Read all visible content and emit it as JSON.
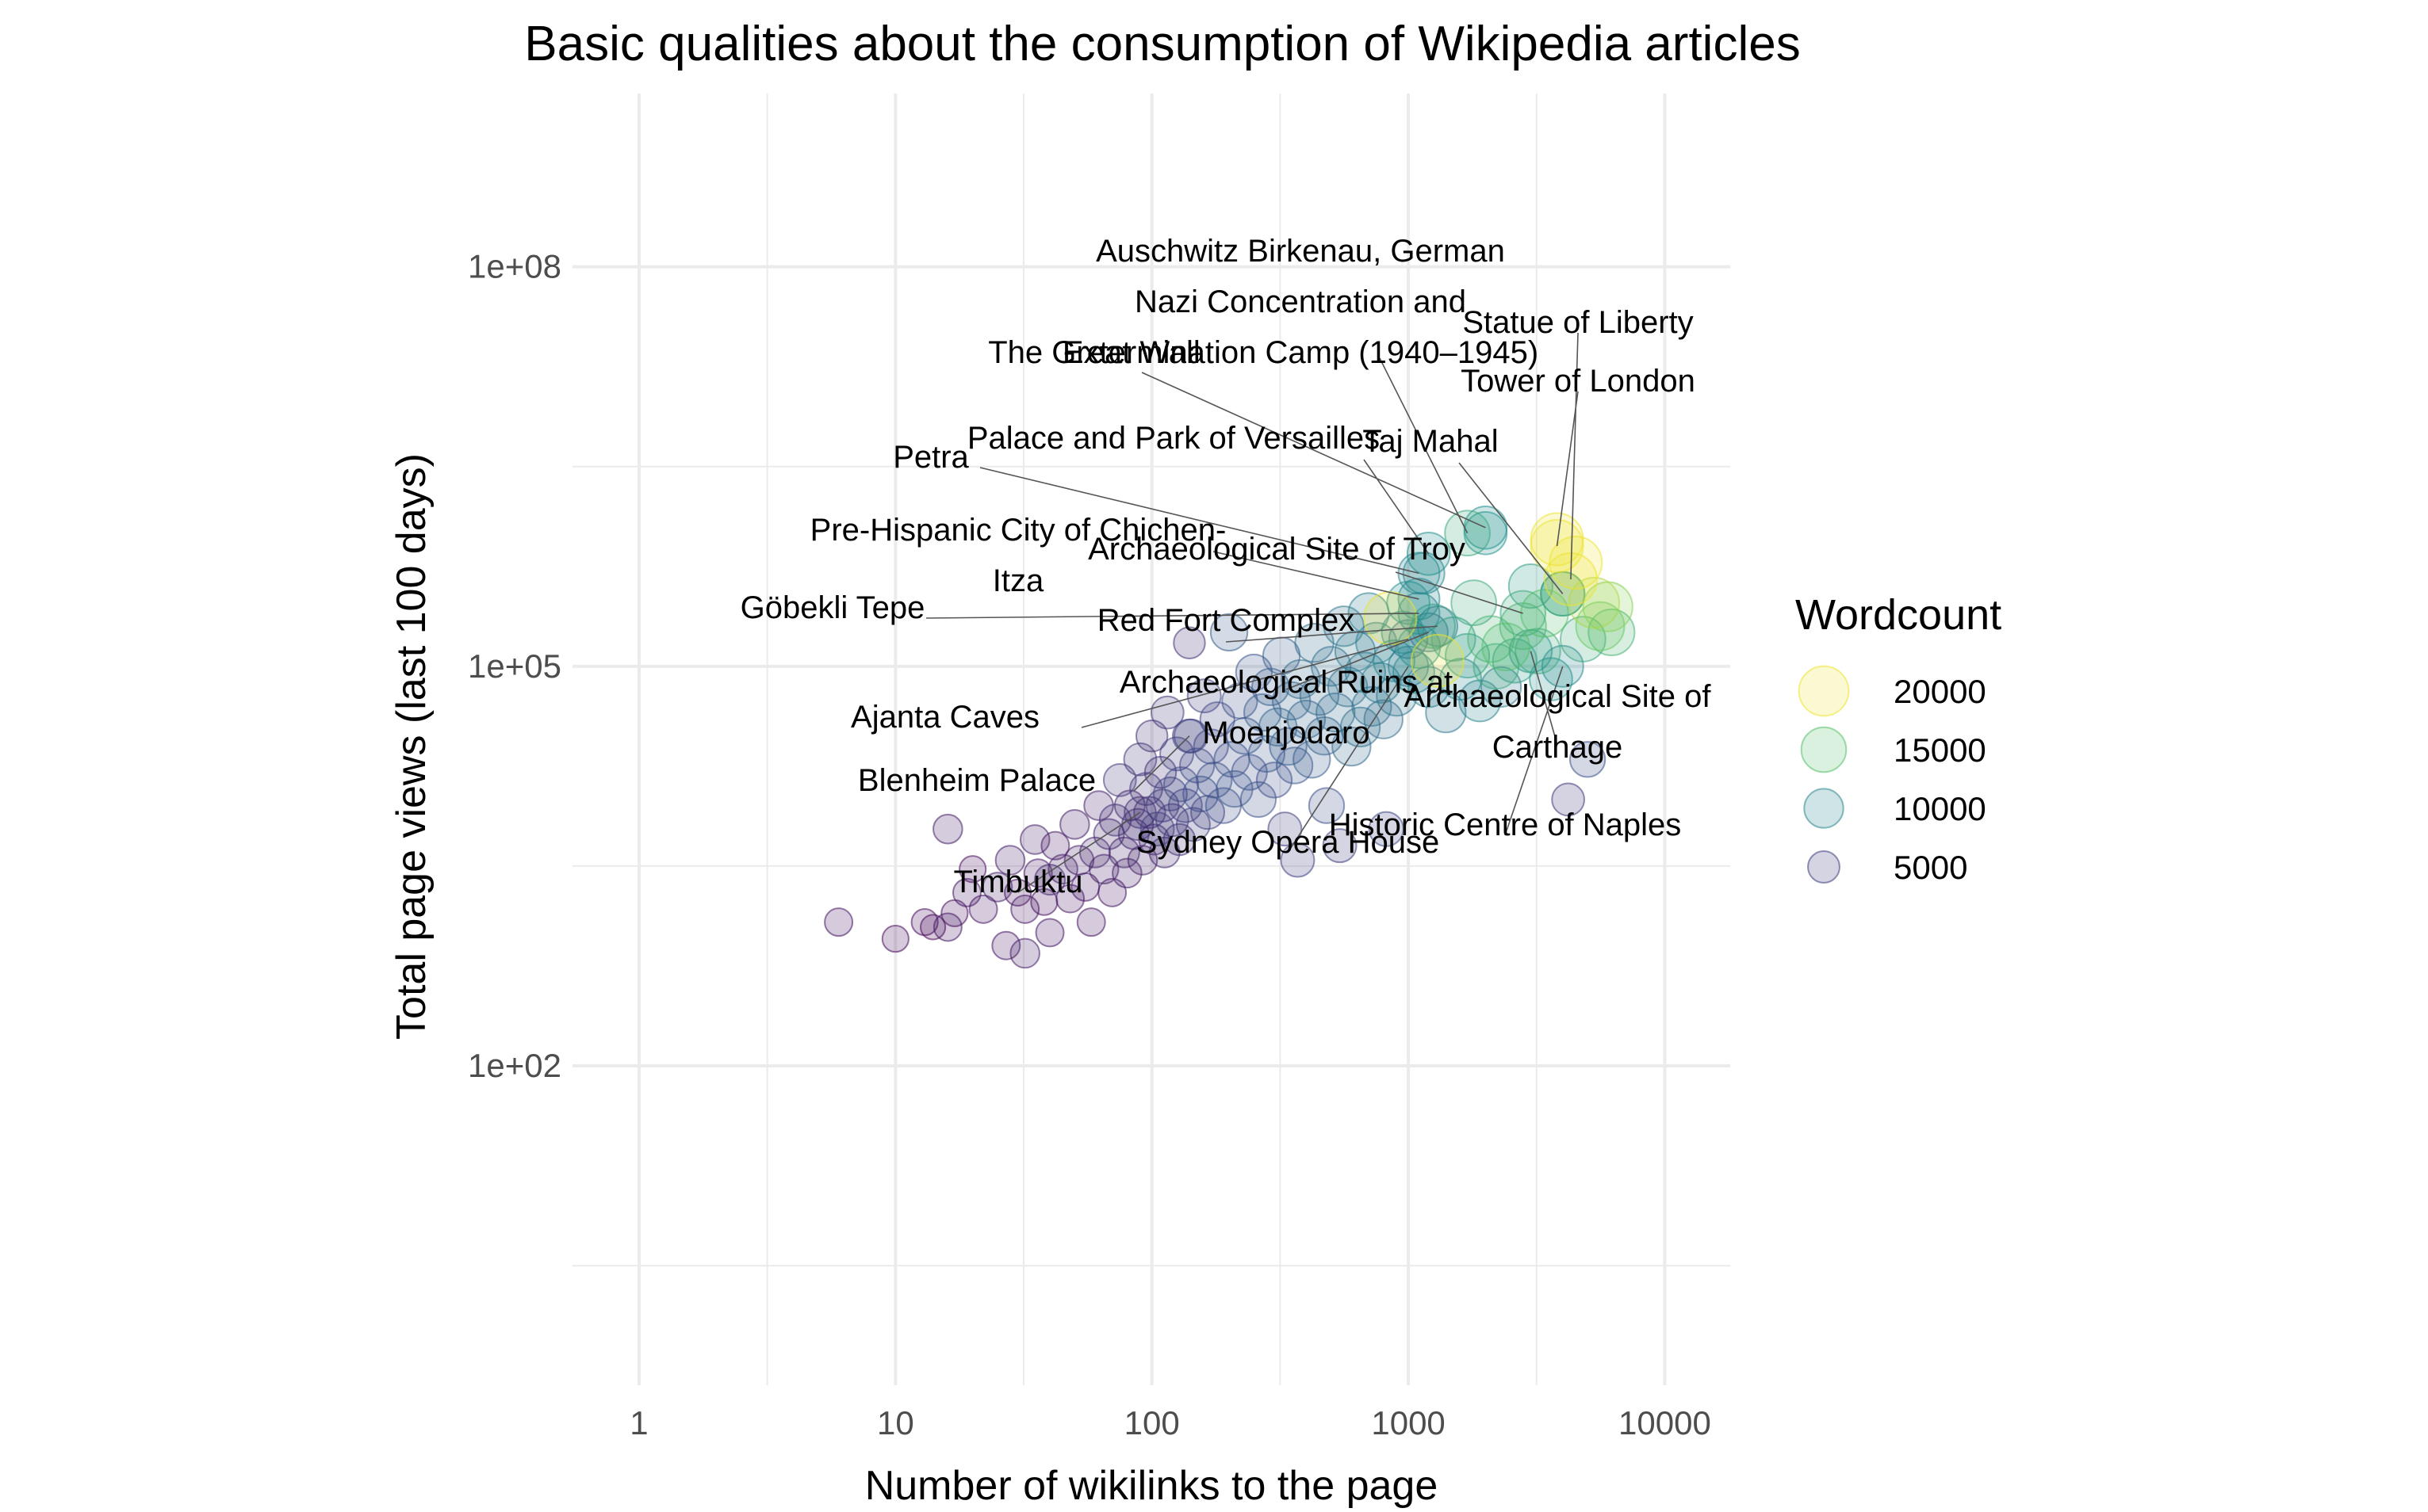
{
  "chart_data": {
    "type": "scatter",
    "title": "Basic qualities about the consumption of Wikipedia articles",
    "xlabel": "Number of wikilinks to the page",
    "ylabel": "Total page views (last 100 days)",
    "x_scale": "log10",
    "y_scale": "log10",
    "xlim": [
      0.55,
      18000
    ],
    "ylim": [
      0.4,
      2000000000
    ],
    "x_ticks": [
      1,
      10,
      100,
      1000,
      10000
    ],
    "x_tick_labels": [
      "1",
      "10",
      "100",
      "1000",
      "10000"
    ],
    "y_ticks": [
      100,
      100000,
      100000000
    ],
    "y_tick_labels": [
      "1e+02",
      "1e+05",
      "1e+08"
    ],
    "grid": true,
    "legend": {
      "title": "Wordcount",
      "position": "right",
      "entries": [
        {
          "label": "20000",
          "value": 20000
        },
        {
          "label": "15000",
          "value": 15000
        },
        {
          "label": "10000",
          "value": 10000
        },
        {
          "label": "5000",
          "value": 5000
        }
      ]
    },
    "labeled_points": [
      {
        "name": "Auschwitz Birkenau, German Nazi Concentration and Extermination Camp (1940–1945)",
        "text_lines": [
          "Auschwitz Birkenau, German",
          "Nazi Concentration and",
          "Extermination Camp (1940–1945)"
        ],
        "x": 1700,
        "y": 1000000,
        "wordcount": 13000
      },
      {
        "name": "Statue of Liberty",
        "text_lines": [
          "Statue of Liberty"
        ],
        "x": 4300,
        "y": 450000,
        "wordcount": 20000
      },
      {
        "name": "Tower of London",
        "text_lines": [
          "Tower of London"
        ],
        "x": 3800,
        "y": 800000,
        "wordcount": 20000
      },
      {
        "name": "The Great Wall",
        "text_lines": [
          "The Great Wall"
        ],
        "x": 2000,
        "y": 1100000,
        "wordcount": 11000
      },
      {
        "name": "Taj Mahal",
        "text_lines": [
          "Taj Mahal"
        ],
        "x": 4000,
        "y": 350000,
        "wordcount": 12000
      },
      {
        "name": "Palace and Park of Versailles",
        "text_lines": [
          "Palace and Park of Versailles"
        ],
        "x": 1200,
        "y": 700000,
        "wordcount": 11000
      },
      {
        "name": "Petra",
        "text_lines": [
          "Petra"
        ],
        "x": 1100,
        "y": 500000,
        "wordcount": 10000
      },
      {
        "name": "Archaeological Site of Troy",
        "text_lines": [
          "Archaeological Site of Troy"
        ],
        "x": 2800,
        "y": 250000,
        "wordcount": 13000
      },
      {
        "name": "Pre-Hispanic City of Chichen-Itza",
        "text_lines": [
          "Pre-Hispanic City of Chichen-",
          "Itza"
        ],
        "x": 1100,
        "y": 320000,
        "wordcount": 10000
      },
      {
        "name": "Göbekli Tepe",
        "text_lines": [
          "Göbekli Tepe"
        ],
        "x": 1100,
        "y": 250000,
        "wordcount": 10000
      },
      {
        "name": "Red Fort Complex",
        "text_lines": [
          "Red Fort Complex"
        ],
        "x": 1300,
        "y": 200000,
        "wordcount": 9000
      },
      {
        "name": "Archaeological Ruins at Moenjodaro",
        "text_lines": [
          "Archaeological Ruins at",
          "Moenjodaro"
        ],
        "x": 1200,
        "y": 180000,
        "wordcount": 8000
      },
      {
        "name": "Ajanta Caves",
        "text_lines": [
          "Ajanta Caves"
        ],
        "x": 1000,
        "y": 160000,
        "wordcount": 8000
      },
      {
        "name": "Archaeological Site of Carthage",
        "text_lines": [
          "Archaeological Site of",
          "Carthage"
        ],
        "x": 3000,
        "y": 130000,
        "wordcount": 11000
      },
      {
        "name": "Blenheim Palace",
        "text_lines": [
          "Blenheim Palace"
        ],
        "x": 140,
        "y": 30000,
        "wordcount": 5000
      },
      {
        "name": "Historic Centre of Naples",
        "text_lines": [
          "Historic Centre of Naples"
        ],
        "x": 4000,
        "y": 100000,
        "wordcount": 10000
      },
      {
        "name": "Sydney Opera House",
        "text_lines": [
          "Sydney Opera House"
        ],
        "x": 1000,
        "y": 100000,
        "wordcount": 9000
      },
      {
        "name": "Timbuktu",
        "text_lines": [
          "Timbuktu"
        ],
        "x": 90,
        "y": 8000,
        "wordcount": 4000
      }
    ],
    "points": [
      {
        "x": 6,
        "y": 1200,
        "wordcount": 2500
      },
      {
        "x": 10,
        "y": 900,
        "wordcount": 2000
      },
      {
        "x": 13,
        "y": 1200,
        "wordcount": 2000
      },
      {
        "x": 14,
        "y": 1100,
        "wordcount": 1500
      },
      {
        "x": 16,
        "y": 1100,
        "wordcount": 2500
      },
      {
        "x": 17,
        "y": 1400,
        "wordcount": 2000
      },
      {
        "x": 16,
        "y": 6000,
        "wordcount": 3000
      },
      {
        "x": 19,
        "y": 2000,
        "wordcount": 2500
      },
      {
        "x": 20,
        "y": 3000,
        "wordcount": 2000
      },
      {
        "x": 22,
        "y": 1500,
        "wordcount": 2500
      },
      {
        "x": 25,
        "y": 2200,
        "wordcount": 3000
      },
      {
        "x": 27,
        "y": 800,
        "wordcount": 2500
      },
      {
        "x": 28,
        "y": 3500,
        "wordcount": 3000
      },
      {
        "x": 30,
        "y": 2000,
        "wordcount": 2000
      },
      {
        "x": 32,
        "y": 1500,
        "wordcount": 2500
      },
      {
        "x": 32,
        "y": 700,
        "wordcount": 3000
      },
      {
        "x": 35,
        "y": 5000,
        "wordcount": 3000
      },
      {
        "x": 36,
        "y": 2800,
        "wordcount": 2500
      },
      {
        "x": 38,
        "y": 1700,
        "wordcount": 2000
      },
      {
        "x": 40,
        "y": 2500,
        "wordcount": 3500
      },
      {
        "x": 40,
        "y": 1000,
        "wordcount": 2500
      },
      {
        "x": 42,
        "y": 4500,
        "wordcount": 2500
      },
      {
        "x": 45,
        "y": 3000,
        "wordcount": 3000
      },
      {
        "x": 48,
        "y": 1800,
        "wordcount": 2500
      },
      {
        "x": 50,
        "y": 6500,
        "wordcount": 3000
      },
      {
        "x": 52,
        "y": 3500,
        "wordcount": 3000
      },
      {
        "x": 55,
        "y": 2200,
        "wordcount": 2500
      },
      {
        "x": 58,
        "y": 1200,
        "wordcount": 2500
      },
      {
        "x": 60,
        "y": 4000,
        "wordcount": 3500
      },
      {
        "x": 62,
        "y": 9000,
        "wordcount": 3000
      },
      {
        "x": 65,
        "y": 3000,
        "wordcount": 3000
      },
      {
        "x": 68,
        "y": 5500,
        "wordcount": 3500
      },
      {
        "x": 70,
        "y": 2000,
        "wordcount": 2500
      },
      {
        "x": 72,
        "y": 7000,
        "wordcount": 4000
      },
      {
        "x": 75,
        "y": 14000,
        "wordcount": 4500
      },
      {
        "x": 78,
        "y": 4000,
        "wordcount": 3500
      },
      {
        "x": 80,
        "y": 2800,
        "wordcount": 3000
      },
      {
        "x": 82,
        "y": 9000,
        "wordcount": 3500
      },
      {
        "x": 85,
        "y": 5500,
        "wordcount": 3500
      },
      {
        "x": 88,
        "y": 6500,
        "wordcount": 4000
      },
      {
        "x": 90,
        "y": 20000,
        "wordcount": 4500
      },
      {
        "x": 92,
        "y": 3500,
        "wordcount": 3000
      },
      {
        "x": 95,
        "y": 12000,
        "wordcount": 4500
      },
      {
        "x": 98,
        "y": 8000,
        "wordcount": 4000
      },
      {
        "x": 100,
        "y": 30000,
        "wordcount": 4000
      },
      {
        "x": 102,
        "y": 5000,
        "wordcount": 3500
      },
      {
        "x": 105,
        "y": 6000,
        "wordcount": 5000
      },
      {
        "x": 108,
        "y": 16000,
        "wordcount": 4000
      },
      {
        "x": 110,
        "y": 9000,
        "wordcount": 4500
      },
      {
        "x": 112,
        "y": 4000,
        "wordcount": 3500
      },
      {
        "x": 115,
        "y": 45000,
        "wordcount": 4500
      },
      {
        "x": 118,
        "y": 11000,
        "wordcount": 5000
      },
      {
        "x": 120,
        "y": 7000,
        "wordcount": 4500
      },
      {
        "x": 125,
        "y": 22000,
        "wordcount": 5000
      },
      {
        "x": 128,
        "y": 5000,
        "wordcount": 4000
      },
      {
        "x": 130,
        "y": 13000,
        "wordcount": 5500
      },
      {
        "x": 135,
        "y": 9000,
        "wordcount": 5000
      },
      {
        "x": 140,
        "y": 150000,
        "wordcount": 4000
      },
      {
        "x": 142,
        "y": 30000,
        "wordcount": 5000
      },
      {
        "x": 145,
        "y": 6500,
        "wordcount": 5000
      },
      {
        "x": 150,
        "y": 18000,
        "wordcount": 5500
      },
      {
        "x": 155,
        "y": 11000,
        "wordcount": 6000
      },
      {
        "x": 160,
        "y": 60000,
        "wordcount": 5000
      },
      {
        "x": 165,
        "y": 8000,
        "wordcount": 5000
      },
      {
        "x": 170,
        "y": 25000,
        "wordcount": 5500
      },
      {
        "x": 175,
        "y": 14000,
        "wordcount": 6000
      },
      {
        "x": 180,
        "y": 40000,
        "wordcount": 5500
      },
      {
        "x": 190,
        "y": 9000,
        "wordcount": 6000
      },
      {
        "x": 200,
        "y": 180000,
        "wordcount": 7000
      },
      {
        "x": 205,
        "y": 20000,
        "wordcount": 6000
      },
      {
        "x": 210,
        "y": 12000,
        "wordcount": 6500
      },
      {
        "x": 220,
        "y": 55000,
        "wordcount": 6000
      },
      {
        "x": 230,
        "y": 30000,
        "wordcount": 6500
      },
      {
        "x": 240,
        "y": 16000,
        "wordcount": 6000
      },
      {
        "x": 250,
        "y": 90000,
        "wordcount": 6500
      },
      {
        "x": 260,
        "y": 10000,
        "wordcount": 6000
      },
      {
        "x": 270,
        "y": 45000,
        "wordcount": 7000
      },
      {
        "x": 280,
        "y": 22000,
        "wordcount": 6500
      },
      {
        "x": 290,
        "y": 70000,
        "wordcount": 7000
      },
      {
        "x": 300,
        "y": 14000,
        "wordcount": 6000
      },
      {
        "x": 310,
        "y": 35000,
        "wordcount": 7500
      },
      {
        "x": 320,
        "y": 120000,
        "wordcount": 7000
      },
      {
        "x": 330,
        "y": 6000,
        "wordcount": 5000
      },
      {
        "x": 340,
        "y": 25000,
        "wordcount": 7000
      },
      {
        "x": 350,
        "y": 55000,
        "wordcount": 7500
      },
      {
        "x": 360,
        "y": 18000,
        "wordcount": 6500
      },
      {
        "x": 370,
        "y": 3500,
        "wordcount": 5000
      },
      {
        "x": 380,
        "y": 80000,
        "wordcount": 8000
      },
      {
        "x": 400,
        "y": 40000,
        "wordcount": 7500
      },
      {
        "x": 420,
        "y": 20000,
        "wordcount": 7000
      },
      {
        "x": 430,
        "y": 150000,
        "wordcount": 8000
      },
      {
        "x": 450,
        "y": 60000,
        "wordcount": 8000
      },
      {
        "x": 470,
        "y": 30000,
        "wordcount": 7500
      },
      {
        "x": 480,
        "y": 9000,
        "wordcount": 6000
      },
      {
        "x": 500,
        "y": 100000,
        "wordcount": 8500
      },
      {
        "x": 520,
        "y": 45000,
        "wordcount": 8000
      },
      {
        "x": 540,
        "y": 4500,
        "wordcount": 5000
      },
      {
        "x": 560,
        "y": 200000,
        "wordcount": 9000
      },
      {
        "x": 580,
        "y": 70000,
        "wordcount": 8500
      },
      {
        "x": 600,
        "y": 25000,
        "wordcount": 8000
      },
      {
        "x": 620,
        "y": 130000,
        "wordcount": 9000
      },
      {
        "x": 650,
        "y": 35000,
        "wordcount": 8500
      },
      {
        "x": 680,
        "y": 90000,
        "wordcount": 9000
      },
      {
        "x": 700,
        "y": 250000,
        "wordcount": 9500
      },
      {
        "x": 720,
        "y": 50000,
        "wordcount": 8500
      },
      {
        "x": 750,
        "y": 150000,
        "wordcount": 9500
      },
      {
        "x": 780,
        "y": 75000,
        "wordcount": 9000
      },
      {
        "x": 800,
        "y": 40000,
        "wordcount": 8000
      },
      {
        "x": 820,
        "y": 6000,
        "wordcount": 5500
      },
      {
        "x": 850,
        "y": 230000,
        "wordcount": 20000
      },
      {
        "x": 880,
        "y": 110000,
        "wordcount": 10000
      },
      {
        "x": 900,
        "y": 60000,
        "wordcount": 9000
      },
      {
        "x": 950,
        "y": 180000,
        "wordcount": 10500
      },
      {
        "x": 1000,
        "y": 300000,
        "wordcount": 11000
      },
      {
        "x": 1050,
        "y": 90000,
        "wordcount": 10000
      },
      {
        "x": 1100,
        "y": 140000,
        "wordcount": 11000
      },
      {
        "x": 1150,
        "y": 500000,
        "wordcount": 10000
      },
      {
        "x": 1200,
        "y": 70000,
        "wordcount": 9500
      },
      {
        "x": 1250,
        "y": 200000,
        "wordcount": 12000
      },
      {
        "x": 1300,
        "y": 110000,
        "wordcount": 20000
      },
      {
        "x": 1400,
        "y": 45000,
        "wordcount": 9000
      },
      {
        "x": 1500,
        "y": 160000,
        "wordcount": 12000
      },
      {
        "x": 1600,
        "y": 80000,
        "wordcount": 10000
      },
      {
        "x": 1700,
        "y": 120000,
        "wordcount": 12000
      },
      {
        "x": 1800,
        "y": 300000,
        "wordcount": 13000
      },
      {
        "x": 1900,
        "y": 55000,
        "wordcount": 10000
      },
      {
        "x": 2000,
        "y": 1000000,
        "wordcount": 11000
      },
      {
        "x": 2100,
        "y": 160000,
        "wordcount": 14000
      },
      {
        "x": 2200,
        "y": 100000,
        "wordcount": 13000
      },
      {
        "x": 2300,
        "y": 70000,
        "wordcount": 9000
      },
      {
        "x": 2400,
        "y": 140000,
        "wordcount": 15000
      },
      {
        "x": 2600,
        "y": 110000,
        "wordcount": 12000
      },
      {
        "x": 2800,
        "y": 200000,
        "wordcount": 14000
      },
      {
        "x": 3000,
        "y": 400000,
        "wordcount": 12000
      },
      {
        "x": 3200,
        "y": 130000,
        "wordcount": 13000
      },
      {
        "x": 3400,
        "y": 250000,
        "wordcount": 15000
      },
      {
        "x": 3600,
        "y": 80000,
        "wordcount": 11000
      },
      {
        "x": 3800,
        "y": 900000,
        "wordcount": 20000
      },
      {
        "x": 4000,
        "y": 350000,
        "wordcount": 12000
      },
      {
        "x": 4200,
        "y": 10000,
        "wordcount": 4500
      },
      {
        "x": 4500,
        "y": 600000,
        "wordcount": 20000
      },
      {
        "x": 4800,
        "y": 160000,
        "wordcount": 13000
      },
      {
        "x": 5000,
        "y": 20000,
        "wordcount": 6000
      },
      {
        "x": 5300,
        "y": 300000,
        "wordcount": 18000
      },
      {
        "x": 5600,
        "y": 200000,
        "wordcount": 16000
      },
      {
        "x": 6000,
        "y": 280000,
        "wordcount": 17000
      },
      {
        "x": 6200,
        "y": 180000,
        "wordcount": 14000
      }
    ]
  },
  "colors": {
    "background": "#ffffff",
    "grid": "#ebebeb",
    "wordcount_low": "#440154",
    "wordcount_mid1": "#3b528b",
    "wordcount_mid2": "#21908c",
    "wordcount_mid3": "#5dc863",
    "wordcount_high": "#fde725"
  }
}
